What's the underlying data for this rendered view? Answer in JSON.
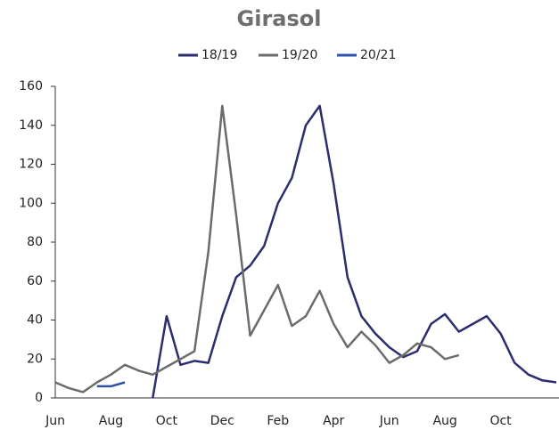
{
  "chart_data": {
    "type": "line",
    "title": "Girasol",
    "categories": [
      "Jun",
      null,
      null,
      null,
      "Aug",
      null,
      null,
      null,
      "Oct",
      null,
      null,
      null,
      "Dec",
      null,
      null,
      null,
      "Feb",
      null,
      null,
      null,
      "Apr",
      null,
      null,
      null,
      "Jun",
      null,
      null,
      null,
      "Aug",
      null,
      null,
      null,
      "Oct",
      null,
      null,
      null,
      null
    ],
    "series": [
      {
        "name": "18/19",
        "color": "#2b2d6e",
        "values": [
          null,
          null,
          null,
          null,
          null,
          null,
          null,
          0,
          42,
          17,
          19,
          18,
          42,
          62,
          68,
          78,
          100,
          113,
          140,
          150,
          110,
          62,
          42,
          33,
          26,
          21,
          24,
          38,
          43,
          34,
          38,
          42,
          33,
          18,
          12,
          9,
          8
        ]
      },
      {
        "name": "19/20",
        "color": "#6b6b6b",
        "values": [
          8,
          5,
          3,
          8,
          12,
          17,
          14,
          12,
          16,
          20,
          24,
          75,
          150,
          94,
          32,
          45,
          58,
          37,
          42,
          55,
          38,
          26,
          34,
          27,
          18,
          22,
          28,
          26,
          20,
          22,
          null,
          null,
          null,
          null,
          null,
          null,
          null
        ]
      },
      {
        "name": "20/21",
        "color": "#3050a8",
        "values": [
          null,
          null,
          null,
          6,
          6,
          8,
          null,
          null,
          null,
          null,
          null,
          null,
          null,
          null,
          null,
          null,
          null,
          null,
          null,
          null,
          null,
          null,
          null,
          null,
          null,
          null,
          null,
          null,
          null,
          null,
          null,
          null,
          null,
          null,
          null,
          null,
          null
        ]
      }
    ],
    "ylim": [
      0,
      160
    ],
    "yticks": [
      0,
      20,
      40,
      60,
      80,
      100,
      120,
      140,
      160
    ],
    "legend": "top"
  }
}
